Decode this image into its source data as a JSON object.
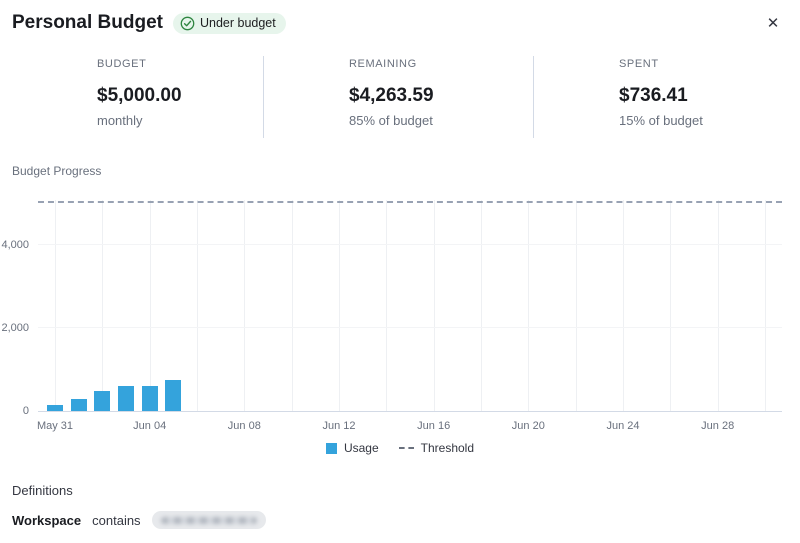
{
  "header": {
    "title": "Personal Budget",
    "status_badge": "Under budget",
    "close_label": "✕"
  },
  "stats": [
    {
      "label": "BUDGET",
      "value": "$5,000.00",
      "sub": "monthly"
    },
    {
      "label": "REMAINING",
      "value": "$4,263.59",
      "sub": "85% of budget"
    },
    {
      "label": "SPENT",
      "value": "$736.41",
      "sub": "15% of budget"
    }
  ],
  "chart_section": {
    "title": "Budget Progress"
  },
  "chart_data": {
    "type": "bar",
    "title": "Budget Progress",
    "series_name": "Usage",
    "cumulative": true,
    "x": [
      "May 31",
      "Jun 01",
      "Jun 02",
      "Jun 03",
      "Jun 04",
      "Jun 05"
    ],
    "values": [
      150,
      290,
      480,
      600,
      605,
      736.41
    ],
    "threshold": 5000,
    "x_domain": [
      "May 31",
      "Jun 30"
    ],
    "x_tick_labels": [
      "May 31",
      "Jun 04",
      "Jun 08",
      "Jun 12",
      "Jun 16",
      "Jun 20",
      "Jun 24",
      "Jun 28"
    ],
    "y_ticks": [
      0,
      2000,
      4000
    ],
    "y_tick_labels": [
      "0",
      "2,000",
      "4,000"
    ],
    "ylim": [
      0,
      5070
    ],
    "grid": true,
    "bar_color": "#34a3dc",
    "threshold_color": "#98a2b3",
    "legend": [
      {
        "label": "Usage"
      },
      {
        "label": "Threshold"
      }
    ],
    "legend_position": "bottom"
  },
  "definitions": {
    "title": "Definitions",
    "rows": [
      {
        "field": "Workspace",
        "operator": "contains",
        "value": "",
        "value_redacted": true
      }
    ]
  }
}
